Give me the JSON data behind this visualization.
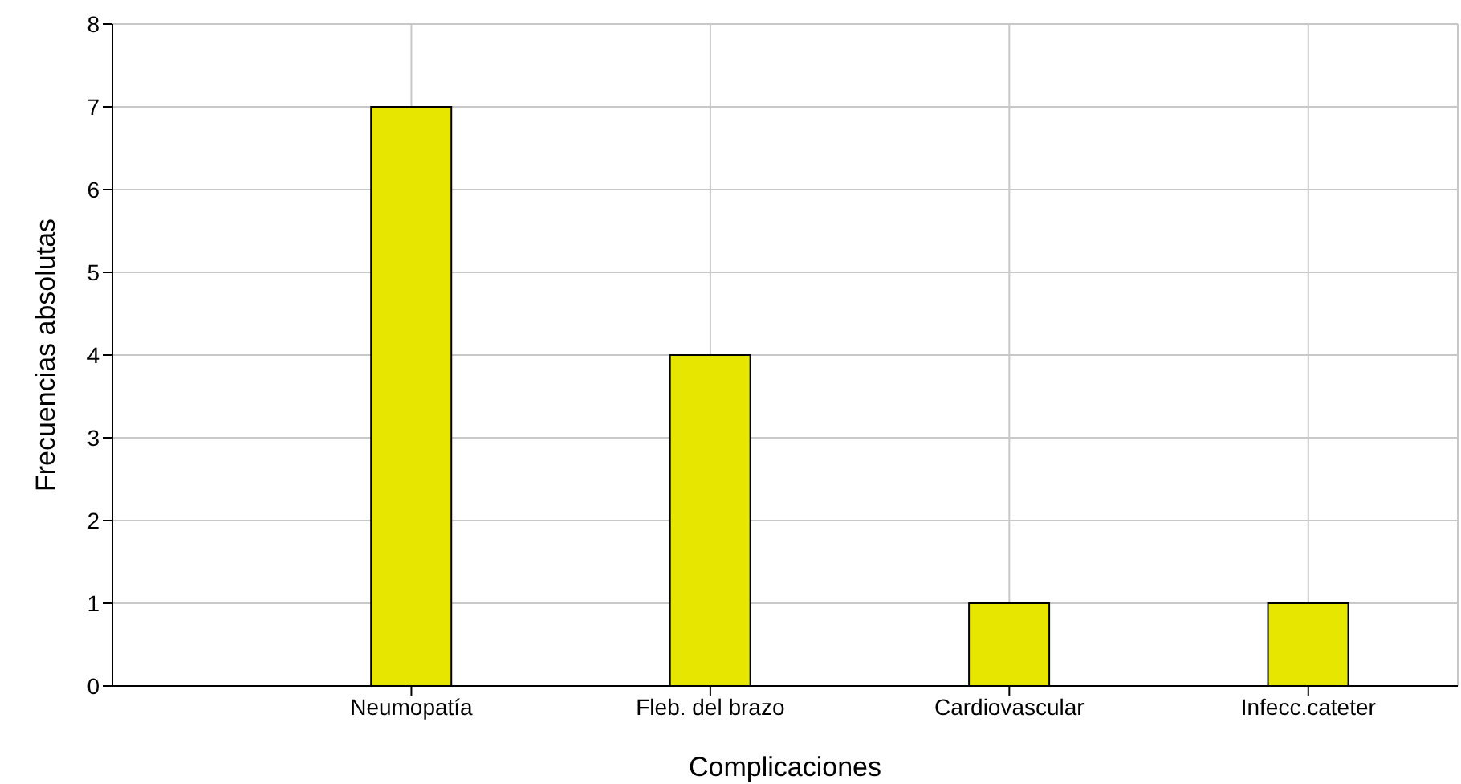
{
  "chart_data": {
    "type": "bar",
    "xlabel": "Complicaciones",
    "ylabel": "Frecuencias absolutas",
    "categories": [
      "Neumopatía",
      "Fleb. del brazo",
      "Cardiovascular",
      "Infecc.cateter"
    ],
    "values": [
      7,
      4,
      1,
      1
    ],
    "color": "#e6e600",
    "ylim": [
      0,
      8
    ],
    "yticks": [
      0,
      1,
      2,
      3,
      4,
      5,
      6,
      7,
      8
    ],
    "grid": true
  }
}
